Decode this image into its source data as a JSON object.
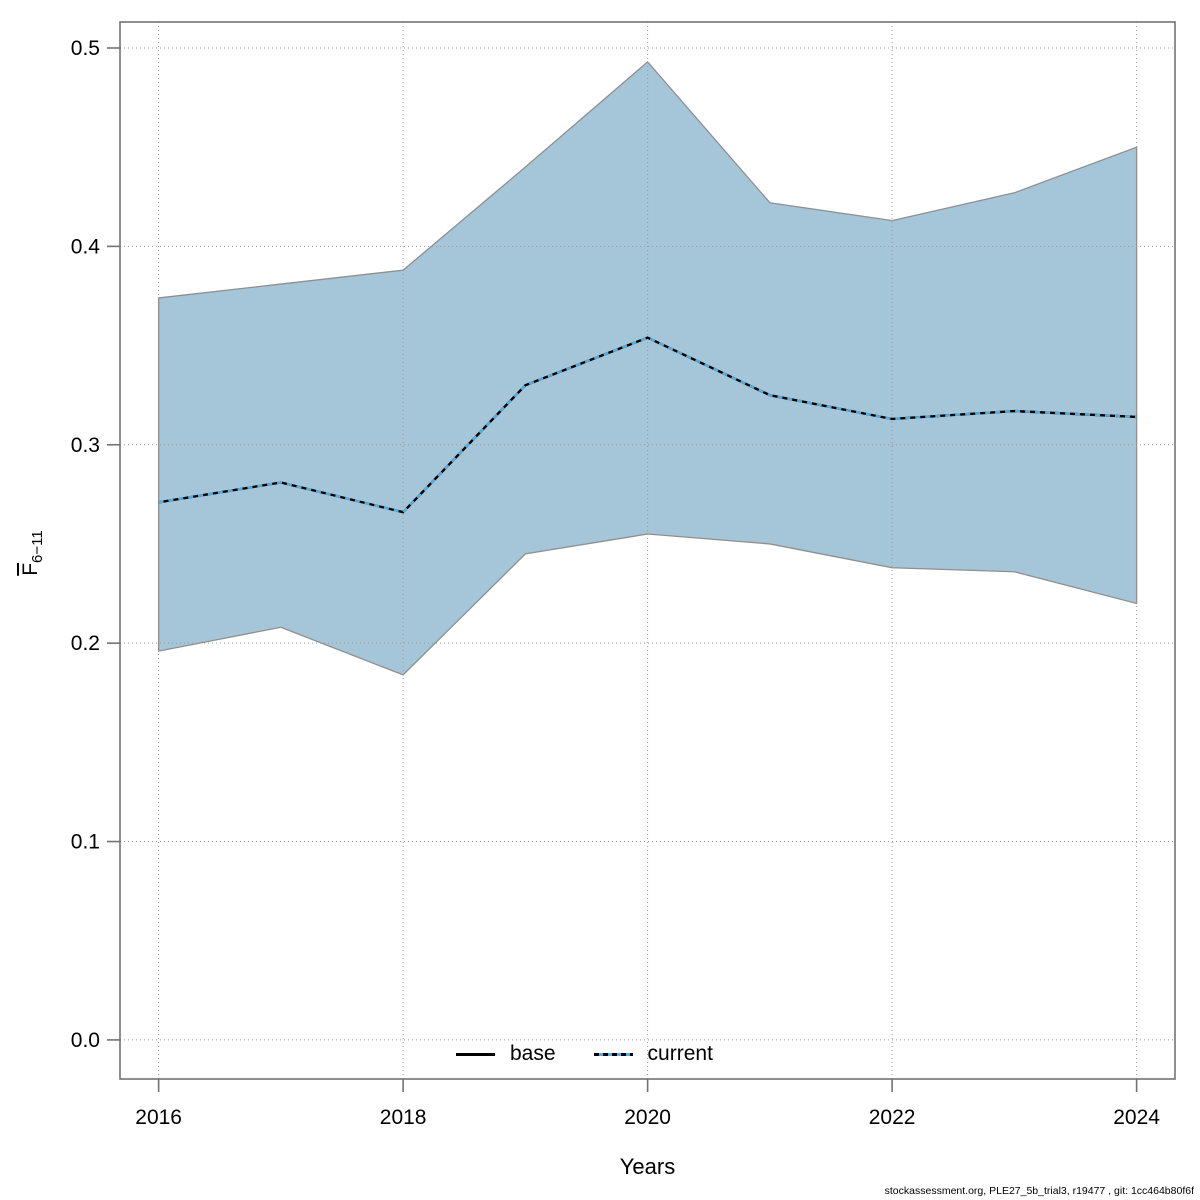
{
  "footer": {
    "text": "stockassessment.org, PLE27_5b_trial3, r19477 , git: 1cc464b80f6f"
  },
  "legend": {
    "base_label": "base",
    "current_label": "current"
  },
  "chart_data": {
    "type": "area",
    "title": "",
    "xlabel": "Years",
    "ylabel": {
      "main": "F",
      "overline": true,
      "sub": "6−11",
      "plain": "F̄ 6−11"
    },
    "x": [
      2016,
      2017,
      2018,
      2019,
      2020,
      2021,
      2022,
      2023,
      2024
    ],
    "series": [
      {
        "name": "base",
        "style": "solid",
        "color": "#000000",
        "values": [
          0.271,
          0.281,
          0.266,
          0.33,
          0.354,
          0.325,
          0.313,
          0.317,
          0.314
        ]
      },
      {
        "name": "current",
        "style": "dashed",
        "color": "#58ade0",
        "values": [
          0.271,
          0.281,
          0.266,
          0.33,
          0.354,
          0.325,
          0.313,
          0.317,
          0.314
        ]
      }
    ],
    "band": {
      "name": "confidence-interval",
      "upper": [
        0.374,
        0.381,
        0.388,
        0.44,
        0.493,
        0.422,
        0.413,
        0.427,
        0.45
      ],
      "lower": [
        0.196,
        0.208,
        0.184,
        0.245,
        0.255,
        0.25,
        0.238,
        0.236,
        0.22
      ],
      "fill": "#a4c6d8",
      "edge": "#8f8f8f"
    },
    "xticks": {
      "values": [
        2016,
        2018,
        2020,
        2022,
        2024
      ],
      "labels": [
        "2016",
        "2018",
        "2020",
        "2022",
        "2024"
      ]
    },
    "yticks": {
      "values": [
        0.0,
        0.1,
        0.2,
        0.3,
        0.4,
        0.5
      ],
      "labels": [
        "0.0",
        "0.1",
        "0.2",
        "0.3",
        "0.4",
        "0.5"
      ]
    },
    "xlim": [
      2015.684,
      2024.314
    ],
    "ylim": [
      -0.0197,
      0.5131
    ],
    "grid": true,
    "grid_color": "#999999",
    "frame_color": "#737373",
    "legend_position": "bottom-center-inside"
  }
}
